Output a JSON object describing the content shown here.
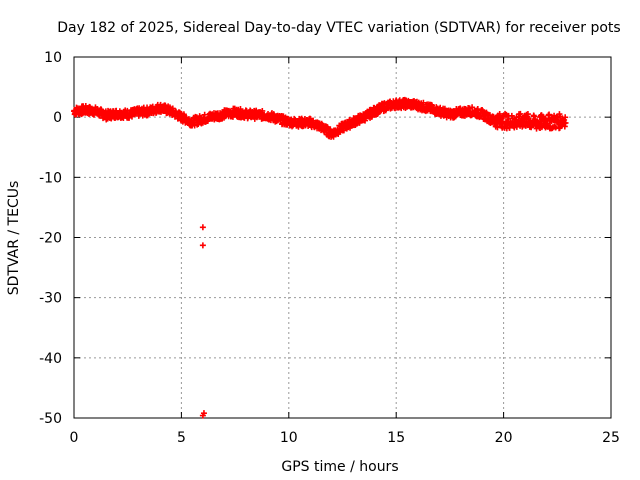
{
  "chart_data": {
    "type": "scatter",
    "title": "Day 182 of 2025, Sidereal Day-to-day VTEC variation (SDTVAR) for receiver pots",
    "xlabel": "GPS time / hours",
    "ylabel": "SDTVAR / TECUs",
    "xlim": [
      0,
      25
    ],
    "ylim": [
      -50,
      10
    ],
    "xticks": [
      0,
      5,
      10,
      15,
      20,
      25
    ],
    "yticks": [
      10,
      0,
      -10,
      -20,
      -30,
      -40,
      -50
    ],
    "grid": true,
    "marker": "plus",
    "series": [
      {
        "name": "SDTVAR",
        "color": "#ff0000",
        "trend": [
          [
            0.0,
            1.0
          ],
          [
            0.5,
            1.2
          ],
          [
            1.0,
            1.0
          ],
          [
            1.5,
            0.3
          ],
          [
            2.0,
            0.6
          ],
          [
            2.5,
            0.5
          ],
          [
            3.0,
            0.8
          ],
          [
            3.5,
            1.0
          ],
          [
            4.0,
            1.6
          ],
          [
            4.5,
            1.0
          ],
          [
            5.0,
            0.0
          ],
          [
            5.5,
            -0.8
          ],
          [
            6.3,
            0.0
          ],
          [
            7.0,
            0.5
          ],
          [
            7.5,
            0.8
          ],
          [
            8.0,
            0.5
          ],
          [
            9.0,
            0.3
          ],
          [
            9.5,
            -0.3
          ],
          [
            10.0,
            -0.8
          ],
          [
            10.5,
            -0.9
          ],
          [
            11.0,
            -0.9
          ],
          [
            11.5,
            -1.6
          ],
          [
            12.0,
            -2.8
          ],
          [
            12.5,
            -1.7
          ],
          [
            13.0,
            -0.8
          ],
          [
            13.5,
            0.0
          ],
          [
            14.0,
            1.0
          ],
          [
            14.5,
            1.8
          ],
          [
            15.0,
            2.2
          ],
          [
            15.5,
            2.2
          ],
          [
            16.0,
            2.0
          ],
          [
            16.5,
            1.5
          ],
          [
            17.0,
            1.0
          ],
          [
            17.5,
            0.5
          ],
          [
            18.0,
            0.8
          ],
          [
            18.5,
            1.0
          ],
          [
            19.0,
            0.5
          ],
          [
            19.5,
            -0.5
          ],
          [
            20.0,
            -0.6
          ],
          [
            20.5,
            -0.8
          ],
          [
            21.0,
            -0.5
          ],
          [
            21.5,
            -1.0
          ],
          [
            22.0,
            -0.7
          ],
          [
            22.5,
            -0.8
          ],
          [
            22.9,
            -0.3
          ]
        ],
        "outliers": [
          [
            6.0,
            -18.3
          ],
          [
            6.0,
            -21.3
          ],
          [
            6.0,
            -49.6
          ],
          [
            6.05,
            -49.2
          ]
        ]
      }
    ]
  }
}
